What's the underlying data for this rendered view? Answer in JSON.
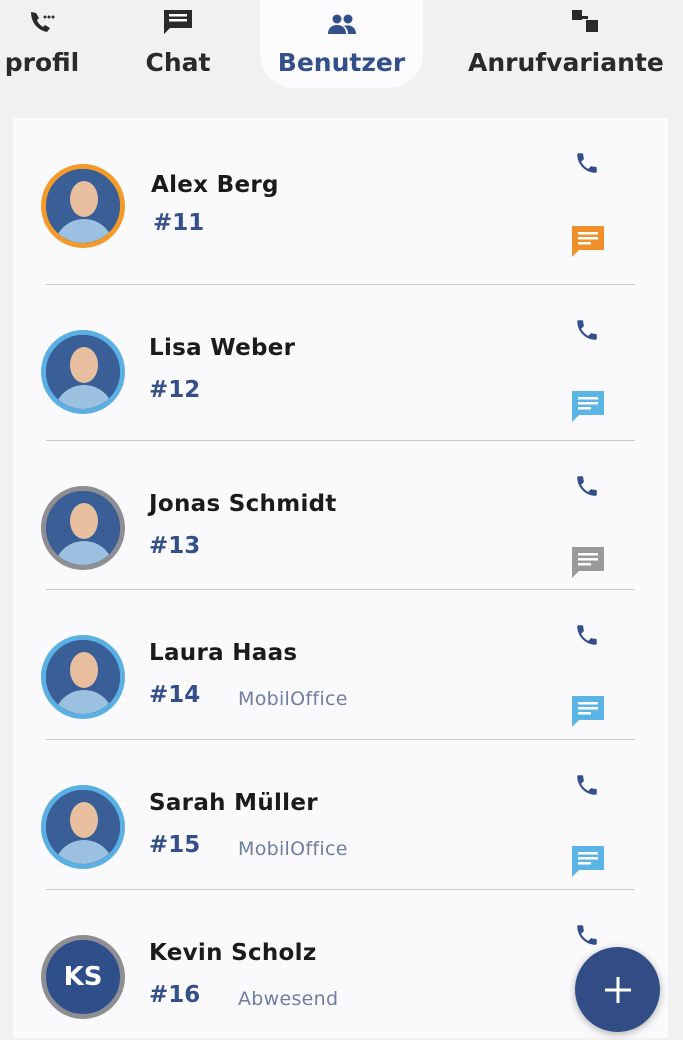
{
  "tabs": [
    {
      "label": "profil",
      "icon": "phone-dots-icon",
      "active": false
    },
    {
      "label": "Chat",
      "icon": "chat-icon",
      "active": false
    },
    {
      "label": "Benutzer",
      "icon": "users-icon",
      "active": true
    },
    {
      "label": "Anrufvariante",
      "icon": "call-flow-icon",
      "active": false
    }
  ],
  "users": [
    {
      "name": "Alex Berg",
      "ext": "#11",
      "status": "",
      "ring": "#f39a2b",
      "chat_color": "#f0902a",
      "initials": ""
    },
    {
      "name": "Lisa Weber",
      "ext": "#12",
      "status": "",
      "ring": "#5aafe3",
      "chat_color": "#5ab4e6",
      "initials": ""
    },
    {
      "name": "Jonas Schmidt",
      "ext": "#13",
      "status": "",
      "ring": "#8e8e93",
      "chat_color": "#9a9a9c",
      "initials": ""
    },
    {
      "name": "Laura Haas",
      "ext": "#14",
      "status": "MobilOffice",
      "ring": "#5aafe3",
      "chat_color": "#5ab4e6",
      "initials": ""
    },
    {
      "name": "Sarah Müller",
      "ext": "#15",
      "status": "MobilOffice",
      "ring": "#5aafe3",
      "chat_color": "#5ab4e6",
      "initials": ""
    },
    {
      "name": "Kevin Scholz",
      "ext": "#16",
      "status": "Abwesend",
      "ring": "#8e8e93",
      "chat_color": "",
      "initials": "KS"
    }
  ],
  "colors": {
    "accent": "#34508a",
    "phone": "#34508a"
  },
  "fab": {
    "icon": "plus-icon"
  }
}
